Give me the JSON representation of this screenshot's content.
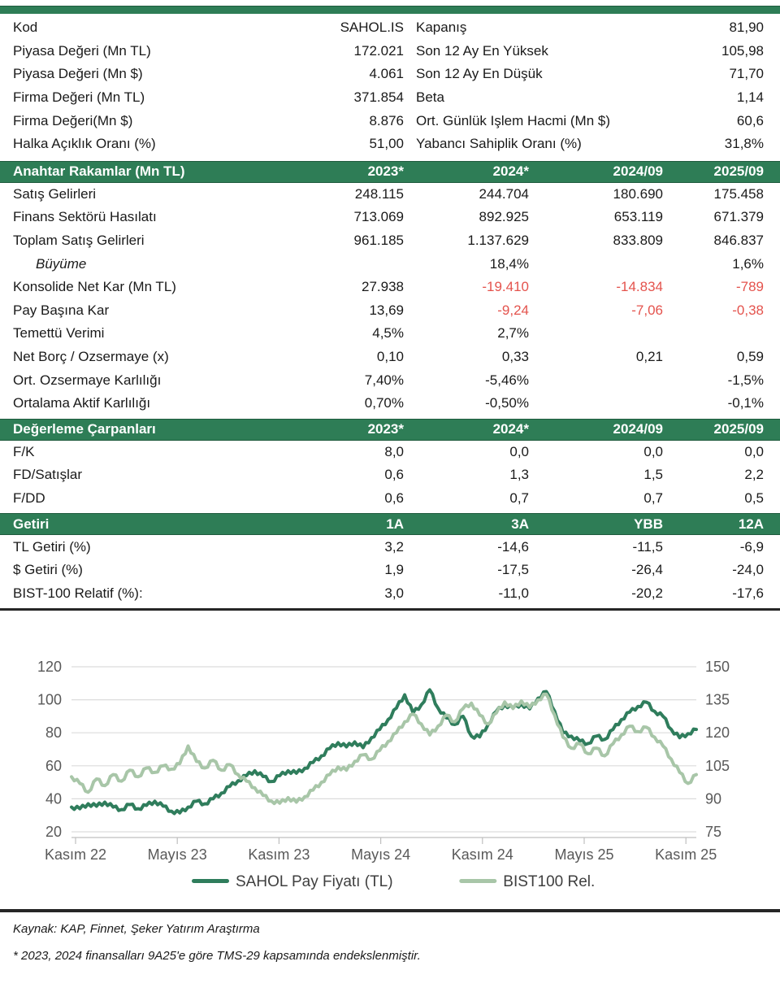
{
  "colors": {
    "header_green": "#2e7d56",
    "negative_red": "#e4534d",
    "sahol_line": "#2f7d5c",
    "bist_line": "#a8c6a8",
    "gridline": "#dcdcdc",
    "axis": "#bfbfbf",
    "axis_text": "#595959"
  },
  "info_table": {
    "rows": [
      {
        "l1": "Kod",
        "v1": "SAHOL.IS",
        "l2": "Kapanış",
        "v2": "81,90"
      },
      {
        "l1": "Piyasa Değeri (Mn TL)",
        "v1": "172.021",
        "l2": "Son 12 Ay En Yüksek",
        "v2": "105,98"
      },
      {
        "l1": "Piyasa Değeri (Mn $)",
        "v1": "4.061",
        "l2": "Son 12 Ay En Düşük",
        "v2": "71,70"
      },
      {
        "l1": "Firma Değeri (Mn TL)",
        "v1": "371.854",
        "l2": "Beta",
        "v2": "1,14"
      },
      {
        "l1": "Firma Değeri(Mn $)",
        "v1": "8.876",
        "l2": "Ort. Günlük Işlem Hacmi (Mn $)",
        "v2": "60,6"
      },
      {
        "l1": "Halka Açıklık Oranı (%)",
        "v1": "51,00",
        "l2": "Yabancı Sahiplik Oranı (%)",
        "v2": "31,8%"
      }
    ]
  },
  "sections": [
    {
      "id": "key-figures",
      "header": {
        "title": "Anahtar Rakamlar (Mn TL)",
        "cols": [
          "2023*",
          "2024*",
          "2024/09",
          "2025/09"
        ]
      },
      "rows": [
        {
          "label": "Satış Gelirleri",
          "values": [
            "248.115",
            "244.704",
            "180.690",
            "175.458"
          ]
        },
        {
          "label": "Finans Sektörü Hasılatı",
          "values": [
            "713.069",
            "892.925",
            "653.119",
            "671.379"
          ]
        },
        {
          "label": "Toplam Satış Gelirleri",
          "values": [
            "961.185",
            "1.137.629",
            "833.809",
            "846.837"
          ]
        },
        {
          "label": "Büyüme",
          "italic": true,
          "values": [
            "",
            "18,4%",
            "",
            "1,6%"
          ]
        },
        {
          "label": "Konsolide Net Kar (Mn TL)",
          "values": [
            "27.938",
            "-19.410",
            "-14.834",
            "-789"
          ],
          "red": [
            false,
            true,
            true,
            true
          ]
        },
        {
          "label": "Pay Başına Kar",
          "values": [
            "13,69",
            "-9,24",
            "-7,06",
            "-0,38"
          ],
          "red": [
            false,
            true,
            true,
            true
          ]
        },
        {
          "label": "Temettü Verimi",
          "values": [
            "4,5%",
            "2,7%",
            "",
            ""
          ]
        },
        {
          "label": "Net Borç / Ozsermaye (x)",
          "values": [
            "0,10",
            "0,33",
            "0,21",
            "0,59"
          ]
        },
        {
          "label": "Ort. Ozsermaye Karlılığı",
          "values": [
            "7,40%",
            "-5,46%",
            "",
            "-1,5%"
          ]
        },
        {
          "label": "Ortalama Aktif Karlılığı",
          "values": [
            "0,70%",
            "-0,50%",
            "",
            "-0,1%"
          ]
        }
      ]
    },
    {
      "id": "valuation-multiples",
      "header": {
        "title": "Değerleme Çarpanları",
        "cols": [
          "2023*",
          "2024*",
          "2024/09",
          "2025/09"
        ]
      },
      "rows": [
        {
          "label": "F/K",
          "values": [
            "8,0",
            "0,0",
            "0,0",
            "0,0"
          ]
        },
        {
          "label": "FD/Satışlar",
          "values": [
            "0,6",
            "1,3",
            "1,5",
            "2,2"
          ]
        },
        {
          "label": "F/DD",
          "values": [
            "0,6",
            "0,7",
            "0,7",
            "0,5"
          ]
        }
      ]
    },
    {
      "id": "returns",
      "header": {
        "title": "Getiri",
        "cols": [
          "1A",
          "3A",
          "YBB",
          "12A"
        ]
      },
      "rows": [
        {
          "label": "TL Getiri (%)",
          "values": [
            "3,2",
            "-14,6",
            "-11,5",
            "-6,9"
          ]
        },
        {
          "label": "$ Getiri (%)",
          "values": [
            "1,9",
            "-17,5",
            "-26,4",
            "-24,0"
          ]
        },
        {
          "label": "BIST-100 Relatif (%):",
          "values": [
            "3,0",
            "-11,0",
            "-20,2",
            "-17,6"
          ]
        }
      ]
    }
  ],
  "chart_data": {
    "type": "line",
    "x_labels": [
      "Kasım 22",
      "Mayıs 23",
      "Kasım 23",
      "Mayıs 24",
      "Kasım 24",
      "Mayıs 25",
      "Kasım 25"
    ],
    "left_axis": {
      "min": 20,
      "max": 120,
      "ticks": [
        120,
        100,
        80,
        60,
        40,
        20
      ]
    },
    "right_axis": {
      "min": 75,
      "max": 150,
      "ticks": [
        150,
        135,
        120,
        105,
        90,
        75
      ]
    },
    "grid": true,
    "legend_position": "bottom",
    "series": [
      {
        "name": "SAHOL Pay Fiyatı (TL)",
        "axis": "left",
        "color": "#2f7d5c",
        "values": [
          35,
          34,
          37,
          35.5,
          38,
          35,
          33.5,
          36.5,
          34,
          36,
          38.5,
          35.5,
          32.5,
          31.5,
          35,
          38.5,
          37,
          40,
          43.5,
          47.5,
          51,
          54,
          57,
          53.5,
          50.5,
          54,
          57,
          55.5,
          58.5,
          62,
          66,
          70.5,
          74,
          71.5,
          74.5,
          71,
          77,
          82,
          88,
          95,
          103,
          92,
          97,
          106,
          95,
          89,
          85,
          90,
          78,
          77.5,
          85,
          93,
          97,
          95,
          97.5,
          94.5,
          101,
          105,
          93,
          80,
          78,
          75,
          73.5,
          78,
          76,
          82,
          88,
          92.5,
          96,
          98.5,
          93,
          90,
          82,
          77,
          79.5,
          82
        ]
      },
      {
        "name": "BIST100 Rel.",
        "axis": "right",
        "color": "#a8c6a8",
        "values": [
          100,
          97,
          93,
          99,
          96,
          101,
          98,
          103,
          100,
          104,
          102,
          105,
          103.5,
          106,
          114,
          107,
          104,
          107.5,
          103,
          105.5,
          101,
          98,
          95,
          91.5,
          89,
          88,
          90.5,
          88.5,
          91,
          94,
          97.5,
          101,
          104.5,
          103,
          107,
          110,
          108,
          112,
          116,
          120,
          125,
          128.5,
          124,
          119,
          123,
          128,
          125,
          131,
          133.5,
          128,
          124,
          129,
          134,
          131,
          134.5,
          131.5,
          135,
          137.5,
          128,
          118,
          113,
          115,
          110.5,
          113,
          109.5,
          115,
          119,
          123,
          120.5,
          122.5,
          118,
          114,
          108,
          102,
          97,
          101
        ]
      }
    ]
  },
  "footer": {
    "source": "Kaynak: KAP, Finnet, Şeker Yatırım Araştırma",
    "note": "* 2023, 2024 finansalları 9A25'e göre TMS-29 kapsamında endekslenmiştir."
  }
}
